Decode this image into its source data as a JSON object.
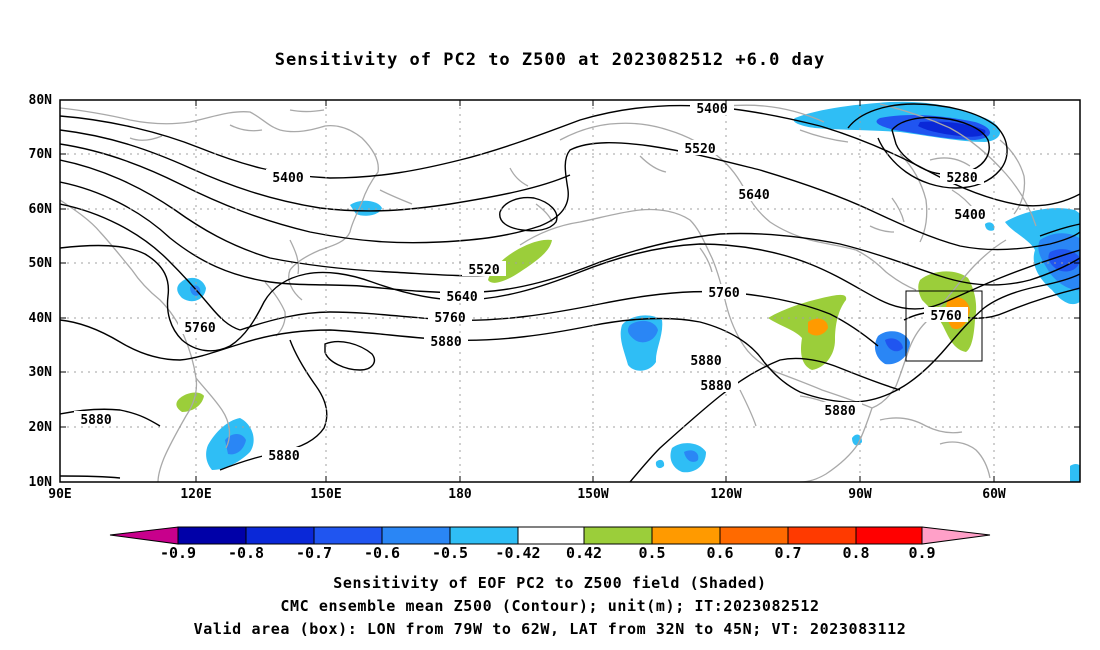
{
  "title": "Sensitivity of PC2 to Z500 at 2023082512 +6.0 day",
  "map": {
    "lat_ticks": [
      "80N",
      "70N",
      "60N",
      "50N",
      "40N",
      "30N",
      "20N",
      "10N"
    ],
    "lon_ticks": [
      "90E",
      "120E",
      "150E",
      "180",
      "150W",
      "120W",
      "90W",
      "60W"
    ],
    "lat_range": [
      10,
      80
    ],
    "lon_range": [
      "90E",
      "50W"
    ],
    "gridlines": "dotted",
    "coastline_color": "#a9a9a9",
    "contour_color": "#000000",
    "contour_labels": [
      {
        "text": "5400"
      },
      {
        "text": "5400"
      },
      {
        "text": "5400"
      },
      {
        "text": "5520"
      },
      {
        "text": "5520"
      },
      {
        "text": "5640"
      },
      {
        "text": "5640"
      },
      {
        "text": "5280"
      },
      {
        "text": "5760"
      },
      {
        "text": "5760"
      },
      {
        "text": "5760"
      },
      {
        "text": "5760"
      },
      {
        "text": "5880"
      },
      {
        "text": "5880"
      },
      {
        "text": "5880"
      },
      {
        "text": "5880"
      },
      {
        "text": "5880"
      },
      {
        "text": "5880"
      }
    ],
    "valid_box": {
      "lon": [
        "79W",
        "62W"
      ],
      "lat": [
        "32N",
        "45N"
      ]
    }
  },
  "colorbar": {
    "labels": [
      "-0.9",
      "-0.8",
      "-0.7",
      "-0.6",
      "-0.5",
      "-0.42",
      "0.42",
      "0.5",
      "0.6",
      "0.7",
      "0.8",
      "0.9"
    ],
    "colors": [
      "#c8008c",
      "#0000a8",
      "#0a28d8",
      "#2055f0",
      "#2a86f5",
      "#2fbef5",
      "#ffffff",
      "#9bce3a",
      "#ff9a00",
      "#ff6a00",
      "#ff3a00",
      "#ff0000",
      "#ffa0c8"
    ]
  },
  "captions": {
    "line1": "Sensitivity of EOF PC2 to Z500 field (Shaded)",
    "line2": "CMC ensemble mean Z500 (Contour); unit(m); IT:2023082512",
    "line3": "Valid area (box): LON from 79W to 62W, LAT from 32N to 45N; VT: 2023083112"
  }
}
